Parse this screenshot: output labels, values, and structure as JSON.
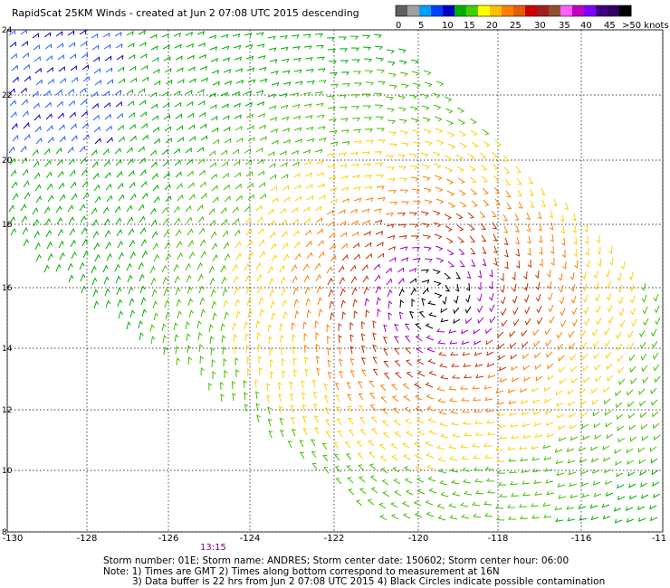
{
  "title": "RapidScat 25KM Winds - created at Jun  2 07:08 UTC 2015 descending",
  "legend": {
    "bins": [
      {
        "label": "0",
        "color": "#606060"
      },
      {
        "label": "",
        "color": "#a0a0a0"
      },
      {
        "label": "5",
        "color": "#00a0ff"
      },
      {
        "label": "",
        "color": "#0040ff"
      },
      {
        "label": "10",
        "color": "#0000c0"
      },
      {
        "label": "",
        "color": "#00b000"
      },
      {
        "label": "15",
        "color": "#40d000"
      },
      {
        "label": "",
        "color": "#ffff00"
      },
      {
        "label": "20",
        "color": "#ffc000"
      },
      {
        "label": "",
        "color": "#ff8000"
      },
      {
        "label": "25",
        "color": "#e06000"
      },
      {
        "label": "",
        "color": "#d00000"
      },
      {
        "label": "30",
        "color": "#a02020"
      },
      {
        "label": "",
        "color": "#905030"
      },
      {
        "label": "35",
        "color": "#ff60ff"
      },
      {
        "label": "",
        "color": "#c000c0"
      },
      {
        "label": "40",
        "color": "#8000ff"
      },
      {
        "label": "",
        "color": "#400080"
      },
      {
        "label": "45",
        "color": "#300060"
      },
      {
        "label": ">50 knots",
        "color": "#000000"
      }
    ],
    "tick_labels": [
      "0",
      "5",
      "10",
      "15",
      "20",
      "25",
      "30",
      "35",
      "40",
      "45",
      ">50 knots"
    ]
  },
  "map": {
    "lon_ticks": [
      "-130",
      "-128",
      "-126",
      "-124",
      "-122",
      "-120",
      "-118",
      "-116",
      "-11"
    ],
    "lat_ticks": [
      "24",
      "22",
      "20",
      "18",
      "16",
      "14",
      "12",
      "10",
      "8"
    ],
    "time_label": "13:15"
  },
  "notes": {
    "line1": "Storm number: 01E;  Storm name: ANDRES;  Storm center date: 150602;  Storm center hour: 06:00",
    "line2": "Note: 1) Times are GMT  2) Times along bottom correspond to measurement at 16N",
    "line3": "3) Data buffer is 22 hrs from Jun  2 07:08 UTC 2015   4) Black Circles indicate possible contamination"
  },
  "colors": {
    "grid": "#000000",
    "calm": "#0000c0",
    "light": "#2060ff",
    "moderate": "#00b000",
    "fresh": "#40c000",
    "strong": "#ffd000",
    "gale": "#ff8000",
    "storm": "#c03000",
    "hurricane": "#a000c0",
    "extreme": "#000000"
  }
}
